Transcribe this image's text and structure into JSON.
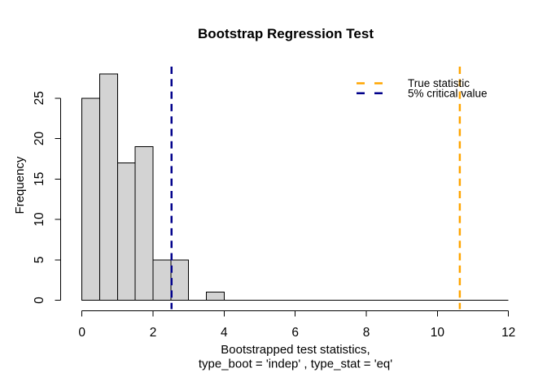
{
  "chart_data": {
    "type": "bar",
    "subtype": "histogram",
    "title": "Bootstrap Regression Test",
    "xlabel_line1": "Bootstrapped test statistics,",
    "xlabel_line2": "type_boot = 'indep' , type_stat = 'eq'",
    "ylabel": "Frequency",
    "bins": {
      "breaks": [
        0,
        0.5,
        1,
        1.5,
        2,
        2.5,
        3,
        3.5,
        4
      ],
      "counts": [
        25,
        28,
        17,
        19,
        5,
        5,
        0,
        1
      ]
    },
    "x_ticks": [
      0,
      2,
      4,
      6,
      8,
      10,
      12
    ],
    "y_ticks": [
      0,
      5,
      10,
      15,
      20,
      25
    ],
    "xlim": [
      0,
      12
    ],
    "ylim": [
      0,
      28
    ],
    "grid": false,
    "bar_fill": "#D3D3D3",
    "bar_stroke": "#000000",
    "axis_color": "#000000",
    "vlines": [
      {
        "name": "true-statistic",
        "x": 10.63,
        "color": "#FFA500",
        "style": "dashed"
      },
      {
        "name": "critical-value-5pct",
        "x": 2.52,
        "color": "#00008B",
        "style": "dashed"
      }
    ],
    "legend": [
      {
        "label": "True statistic",
        "color": "#FFA500",
        "line": "dashed"
      },
      {
        "label": "5% critical value",
        "color": "#00008B",
        "line": "dashed"
      }
    ],
    "legend_position": "top-right"
  }
}
